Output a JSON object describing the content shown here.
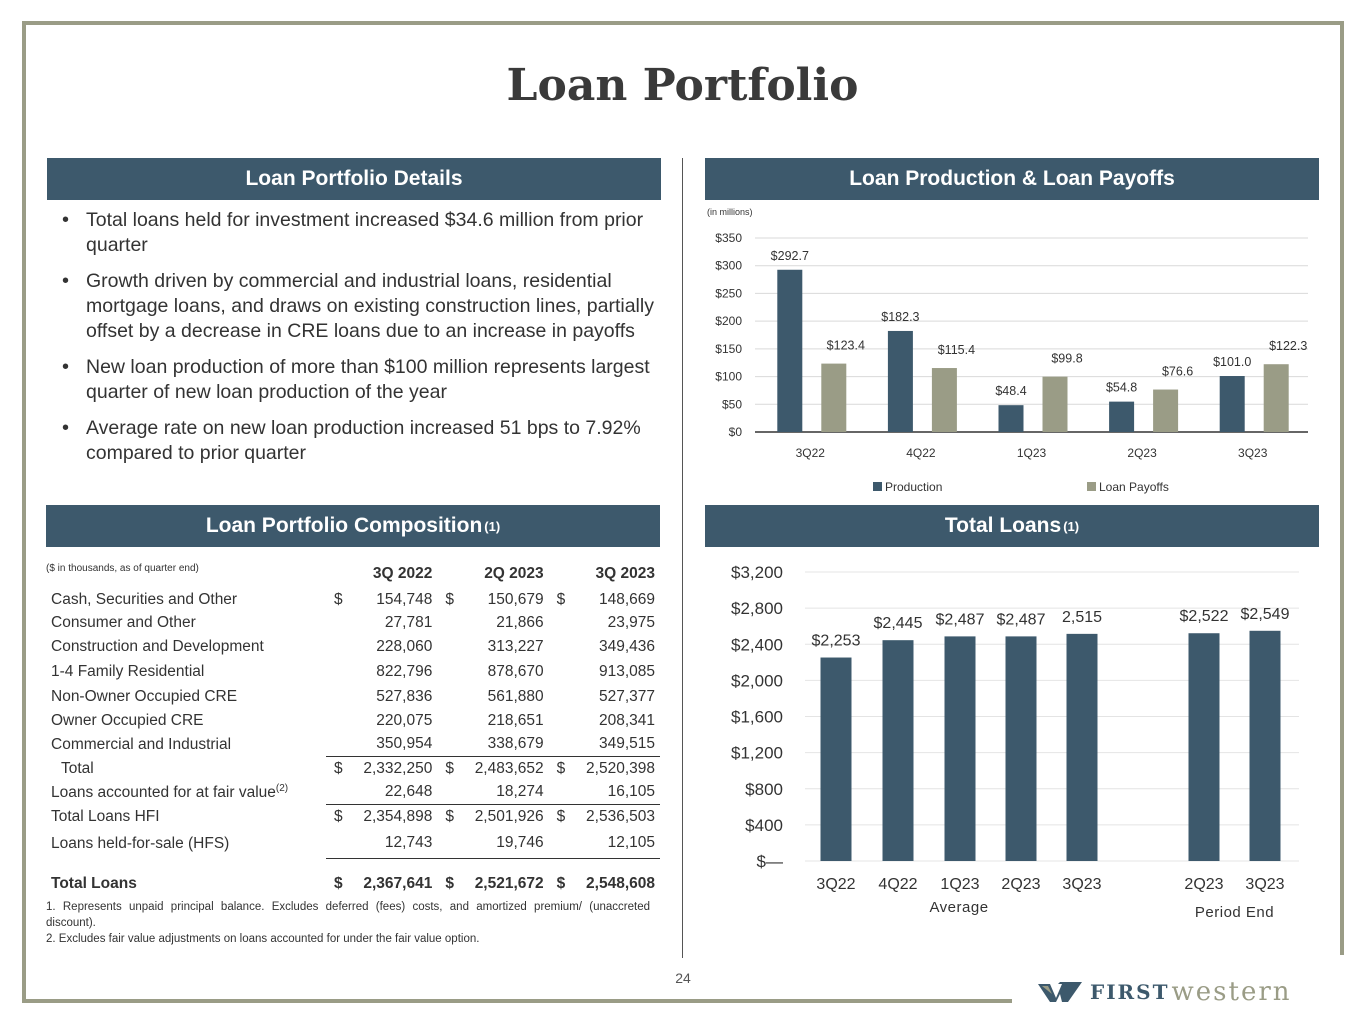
{
  "title": "Loan Portfolio",
  "details": {
    "header": "Loan Portfolio Details",
    "bullets": [
      "Total loans held for investment increased $34.6 million from prior quarter",
      "Growth driven by commercial and industrial loans, residential mortgage loans, and draws on existing construction lines, partially offset by a decrease in CRE loans due to an increase in payoffs",
      "New loan production of more than $100 million represents largest quarter of new loan production of the year",
      "Average rate on new loan production increased 51 bps to 7.92% compared to prior quarter"
    ]
  },
  "composition": {
    "header": "Loan Portfolio Composition",
    "header_sup": "(1)",
    "note": "($ in thousands, as of quarter end)",
    "columns": [
      "3Q 2022",
      "2Q 2023",
      "3Q 2023"
    ],
    "rows": [
      {
        "label": "Cash, Securities and Other",
        "sup": "",
        "cur": "$",
        "values": [
          "154,748",
          "150,679",
          "148,669"
        ]
      },
      {
        "label": "Consumer and Other",
        "sup": "",
        "cur": "",
        "values": [
          "27,781",
          "21,866",
          "23,975"
        ]
      },
      {
        "label": "Construction and Development",
        "sup": "",
        "cur": "",
        "values": [
          "228,060",
          "313,227",
          "349,436"
        ]
      },
      {
        "label": "1-4 Family Residential",
        "sup": "",
        "cur": "",
        "values": [
          "822,796",
          "878,670",
          "913,085"
        ]
      },
      {
        "label": "Non-Owner Occupied CRE",
        "sup": "",
        "cur": "",
        "values": [
          "527,836",
          "561,880",
          "527,377"
        ]
      },
      {
        "label": "Owner Occupied CRE",
        "sup": "",
        "cur": "",
        "values": [
          "220,075",
          "218,651",
          "208,341"
        ]
      },
      {
        "label": "Commercial and Industrial",
        "sup": "",
        "cur": "",
        "values": [
          "350,954",
          "338,679",
          "349,515"
        ]
      },
      {
        "label": "Total",
        "sup": "",
        "cur": "$",
        "values": [
          "2,332,250",
          "2,483,652",
          "2,520,398"
        ]
      },
      {
        "label": "Loans accounted for at fair value",
        "sup": "(2)",
        "cur": "",
        "values": [
          "22,648",
          "18,274",
          "16,105"
        ]
      },
      {
        "label": "Total Loans HFI",
        "sup": "",
        "cur": "$",
        "values": [
          "2,354,898",
          "2,501,926",
          "2,536,503"
        ]
      },
      {
        "label": "Loans held-for-sale (HFS)",
        "sup": "",
        "cur": "",
        "values": [
          "12,743",
          "19,746",
          "12,105"
        ]
      },
      {
        "label": "Total Loans",
        "sup": "",
        "cur": "$",
        "values": [
          "2,367,641",
          "2,521,672",
          "2,548,608"
        ]
      }
    ],
    "footnotes": [
      "1.  Represents unpaid principal balance. Excludes deferred (fees) costs, and amortized premium/ (unaccreted discount).",
      "2.  Excludes fair value adjustments on loans accounted for under the fair value option."
    ]
  },
  "production_header": "Loan Production & Loan Payoffs",
  "total_loans_header": "Total Loans",
  "total_loans_header_sup": "(1)",
  "page_number": "24",
  "logo": {
    "first": "FIRST",
    "western": "western"
  },
  "colors": {
    "dark": "#3d596c",
    "light": "#9a9c86"
  },
  "chart_data": [
    {
      "type": "bar",
      "title": "Loan Production & Loan Payoffs",
      "unit_note": "(in millions)",
      "categories": [
        "3Q22",
        "4Q22",
        "1Q23",
        "2Q23",
        "3Q23"
      ],
      "series": [
        {
          "name": "Production",
          "values": [
            292.7,
            182.3,
            48.4,
            54.8,
            101.0
          ],
          "labels": [
            "$292.7",
            "$182.3",
            "$48.4",
            "$54.8",
            "$101.0"
          ]
        },
        {
          "name": "Loan Payoffs",
          "values": [
            123.4,
            115.4,
            99.8,
            76.6,
            122.3
          ],
          "labels": [
            "$123.4",
            "$115.4",
            "$99.8",
            "$76.6",
            "$122.3"
          ]
        }
      ],
      "yticks": [
        "$0",
        "$50",
        "$100",
        "$150",
        "$200",
        "$250",
        "$300",
        "$350"
      ],
      "ylim": [
        0,
        350
      ],
      "legend": "bottom",
      "grid": true
    },
    {
      "type": "bar",
      "title": "Total Loans",
      "categories": [
        "3Q22",
        "4Q22",
        "1Q23",
        "2Q23",
        "3Q23",
        "2Q23",
        "3Q23"
      ],
      "groups": [
        {
          "label": "Average",
          "start": 0,
          "end": 4
        },
        {
          "label": "Period End",
          "start": 5,
          "end": 6
        }
      ],
      "values": [
        2253,
        2445,
        2487,
        2487,
        2515,
        2522,
        2549
      ],
      "labels": [
        "$2,253",
        "$2,445",
        "$2,487",
        "$2,487",
        "2,515",
        "$2,522",
        "$2,549"
      ],
      "yticks": [
        "$—",
        "$400",
        "$800",
        "$1,200",
        "$1,600",
        "$2,000",
        "$2,400",
        "$2,800",
        "$3,200"
      ],
      "ylim": [
        0,
        3200
      ],
      "grid": true
    }
  ]
}
